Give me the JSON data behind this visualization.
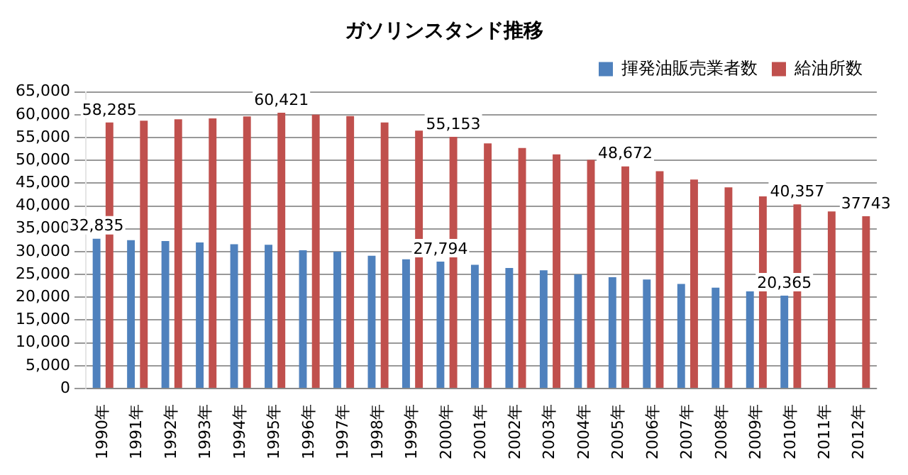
{
  "chart_data": {
    "type": "bar",
    "title": "ガソリンスタンド推移",
    "categories": [
      "1990年",
      "1991年",
      "1992年",
      "1993年",
      "1994年",
      "1995年",
      "1996年",
      "1997年",
      "1998年",
      "1999年",
      "2000年",
      "2001年",
      "2002年",
      "2003年",
      "2004年",
      "2005年",
      "2006年",
      "2007年",
      "2008年",
      "2009年",
      "2010年",
      "2011年",
      "2012年"
    ],
    "series": [
      {
        "name": "揮発油販売業者数",
        "color": "#4f81bd",
        "values": [
          32835,
          32500,
          32300,
          32000,
          31600,
          31500,
          30300,
          30000,
          29100,
          28300,
          27794,
          27100,
          26400,
          25900,
          25000,
          24400,
          23900,
          22900,
          22100,
          21300,
          20365,
          null,
          null
        ],
        "value_labels": [
          "32,835",
          null,
          null,
          null,
          null,
          null,
          null,
          null,
          null,
          null,
          "27,794",
          null,
          null,
          null,
          null,
          null,
          null,
          null,
          null,
          null,
          "20,365",
          null,
          null
        ]
      },
      {
        "name": "給油所数",
        "color": "#c0504d",
        "values": [
          58285,
          58700,
          59000,
          59200,
          59600,
          60421,
          60000,
          59700,
          58300,
          56500,
          55153,
          53700,
          52700,
          51300,
          50100,
          48672,
          47600,
          45800,
          44100,
          42100,
          40357,
          38800,
          37743
        ],
        "value_labels": [
          "58,285",
          null,
          null,
          null,
          null,
          "60,421",
          null,
          null,
          null,
          null,
          "55,153",
          null,
          null,
          null,
          null,
          "48,672",
          null,
          null,
          null,
          null,
          "40,357",
          null,
          "37743"
        ]
      }
    ],
    "ylim": [
      0,
      65000
    ],
    "yticks": [
      0,
      {
        "value": 5000,
        "label": "5,000"
      },
      {
        "value": 10000,
        "label": "10,000"
      },
      {
        "value": 15000,
        "label": "15,000"
      },
      {
        "value": 20000,
        "label": "20,000"
      },
      {
        "value": 25000,
        "label": "25,000"
      },
      {
        "value": 30000,
        "label": "30,000"
      },
      {
        "value": 35000,
        "label": "35,000"
      },
      {
        "value": 40000,
        "label": "40,000"
      },
      {
        "value": 45000,
        "label": "45,000"
      },
      {
        "value": 50000,
        "label": "50,000"
      },
      {
        "value": 55000,
        "label": "55,000"
      },
      {
        "value": 60000,
        "label": "60,000"
      },
      {
        "value": 65000,
        "label": "65,000"
      }
    ],
    "grid": "y",
    "legend": "top right"
  }
}
